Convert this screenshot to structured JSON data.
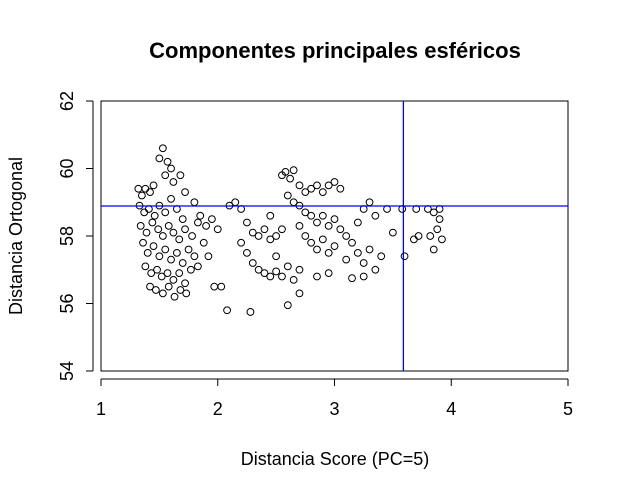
{
  "chart_data": {
    "type": "scatter",
    "title": "Componentes principales esféricos",
    "x_label": "Distancia Score (PC=5)",
    "y_label": "Distancia Ortogonal",
    "xlim": [
      1,
      5
    ],
    "ylim": [
      54,
      62
    ],
    "xticks": [
      1,
      2,
      3,
      4,
      5
    ],
    "yticks": [
      54,
      56,
      58,
      60,
      62
    ],
    "color": "#000000",
    "reference_color": "#0000ff",
    "vline": 3.59,
    "hline": 58.89,
    "x": [
      1.32,
      1.35,
      1.38,
      1.42,
      1.45,
      1.33,
      1.37,
      1.41,
      1.46,
      1.5,
      1.55,
      1.6,
      1.65,
      1.7,
      1.34,
      1.39,
      1.44,
      1.49,
      1.53,
      1.58,
      1.62,
      1.67,
      1.72,
      1.78,
      1.83,
      1.36,
      1.4,
      1.45,
      1.5,
      1.55,
      1.6,
      1.65,
      1.7,
      1.75,
      1.8,
      1.38,
      1.43,
      1.48,
      1.52,
      1.57,
      1.62,
      1.67,
      1.72,
      1.77,
      1.42,
      1.47,
      1.53,
      1.58,
      1.63,
      1.68,
      1.73,
      1.5,
      1.53,
      1.57,
      1.6,
      1.55,
      1.62,
      1.68,
      1.72,
      1.8,
      1.85,
      1.9,
      1.95,
      2.0,
      1.88,
      1.92,
      1.83,
      1.97,
      2.03,
      2.08,
      2.28,
      2.1,
      2.15,
      2.2,
      2.25,
      2.3,
      2.35,
      2.4,
      2.45,
      2.5,
      2.2,
      2.25,
      2.3,
      2.35,
      2.4,
      2.45,
      2.5,
      2.55,
      2.6,
      2.65,
      2.7,
      2.6,
      2.7,
      2.55,
      2.58,
      2.62,
      2.65,
      2.7,
      2.75,
      2.8,
      2.85,
      2.9,
      2.95,
      3.0,
      3.05,
      2.6,
      2.65,
      2.7,
      2.75,
      2.8,
      2.85,
      2.9,
      2.95,
      3.0,
      3.05,
      3.1,
      2.7,
      2.75,
      2.8,
      2.85,
      2.9,
      2.95,
      3.0,
      3.1,
      3.15,
      3.2,
      3.25,
      3.3,
      3.35,
      3.4,
      3.3,
      3.25,
      3.2,
      3.35,
      3.45,
      3.15,
      3.25,
      2.85,
      2.95,
      2.5,
      2.55,
      2.45,
      3.5,
      3.6,
      3.58,
      3.7,
      3.72,
      3.68,
      3.8,
      3.85,
      3.9,
      3.88,
      3.92,
      3.85,
      3.82,
      3.9
    ],
    "values": [
      59.4,
      59.2,
      59.4,
      59.3,
      59.5,
      58.9,
      58.7,
      58.8,
      58.6,
      58.9,
      58.7,
      59.1,
      58.8,
      58.5,
      58.3,
      58.1,
      58.4,
      58.2,
      58.0,
      58.3,
      58.1,
      57.9,
      58.2,
      58.0,
      58.4,
      57.8,
      57.5,
      57.7,
      57.4,
      57.6,
      57.3,
      57.5,
      57.2,
      57.6,
      57.4,
      57.1,
      56.9,
      57.0,
      56.8,
      56.9,
      56.7,
      56.9,
      56.6,
      57.0,
      56.5,
      56.4,
      56.3,
      56.5,
      56.2,
      56.4,
      56.3,
      60.3,
      60.6,
      60.2,
      60.0,
      59.8,
      59.6,
      59.8,
      59.3,
      59.0,
      58.6,
      58.3,
      58.5,
      58.2,
      57.8,
      57.4,
      57.1,
      56.5,
      56.5,
      55.8,
      55.75,
      58.9,
      59.0,
      58.8,
      58.4,
      58.1,
      58.0,
      58.2,
      57.9,
      58.0,
      57.8,
      57.5,
      57.2,
      57.0,
      56.9,
      56.8,
      56.95,
      56.8,
      57.1,
      56.7,
      57.0,
      55.95,
      56.3,
      59.8,
      59.9,
      59.7,
      59.95,
      59.5,
      59.3,
      59.4,
      59.5,
      59.3,
      59.5,
      59.6,
      59.4,
      59.2,
      59.0,
      58.9,
      58.7,
      58.6,
      58.4,
      58.6,
      58.3,
      58.5,
      58.2,
      58.0,
      58.3,
      58.0,
      57.8,
      57.6,
      57.9,
      57.5,
      57.7,
      57.3,
      57.8,
      57.5,
      57.2,
      57.6,
      57.0,
      57.4,
      59.0,
      58.8,
      58.4,
      58.6,
      58.8,
      56.75,
      56.8,
      56.8,
      56.9,
      57.4,
      58.2,
      58.6,
      58.1,
      57.4,
      58.8,
      58.8,
      58.0,
      57.9,
      58.8,
      58.7,
      58.5,
      58.2,
      57.9,
      57.6,
      58.0,
      58.8
    ]
  }
}
